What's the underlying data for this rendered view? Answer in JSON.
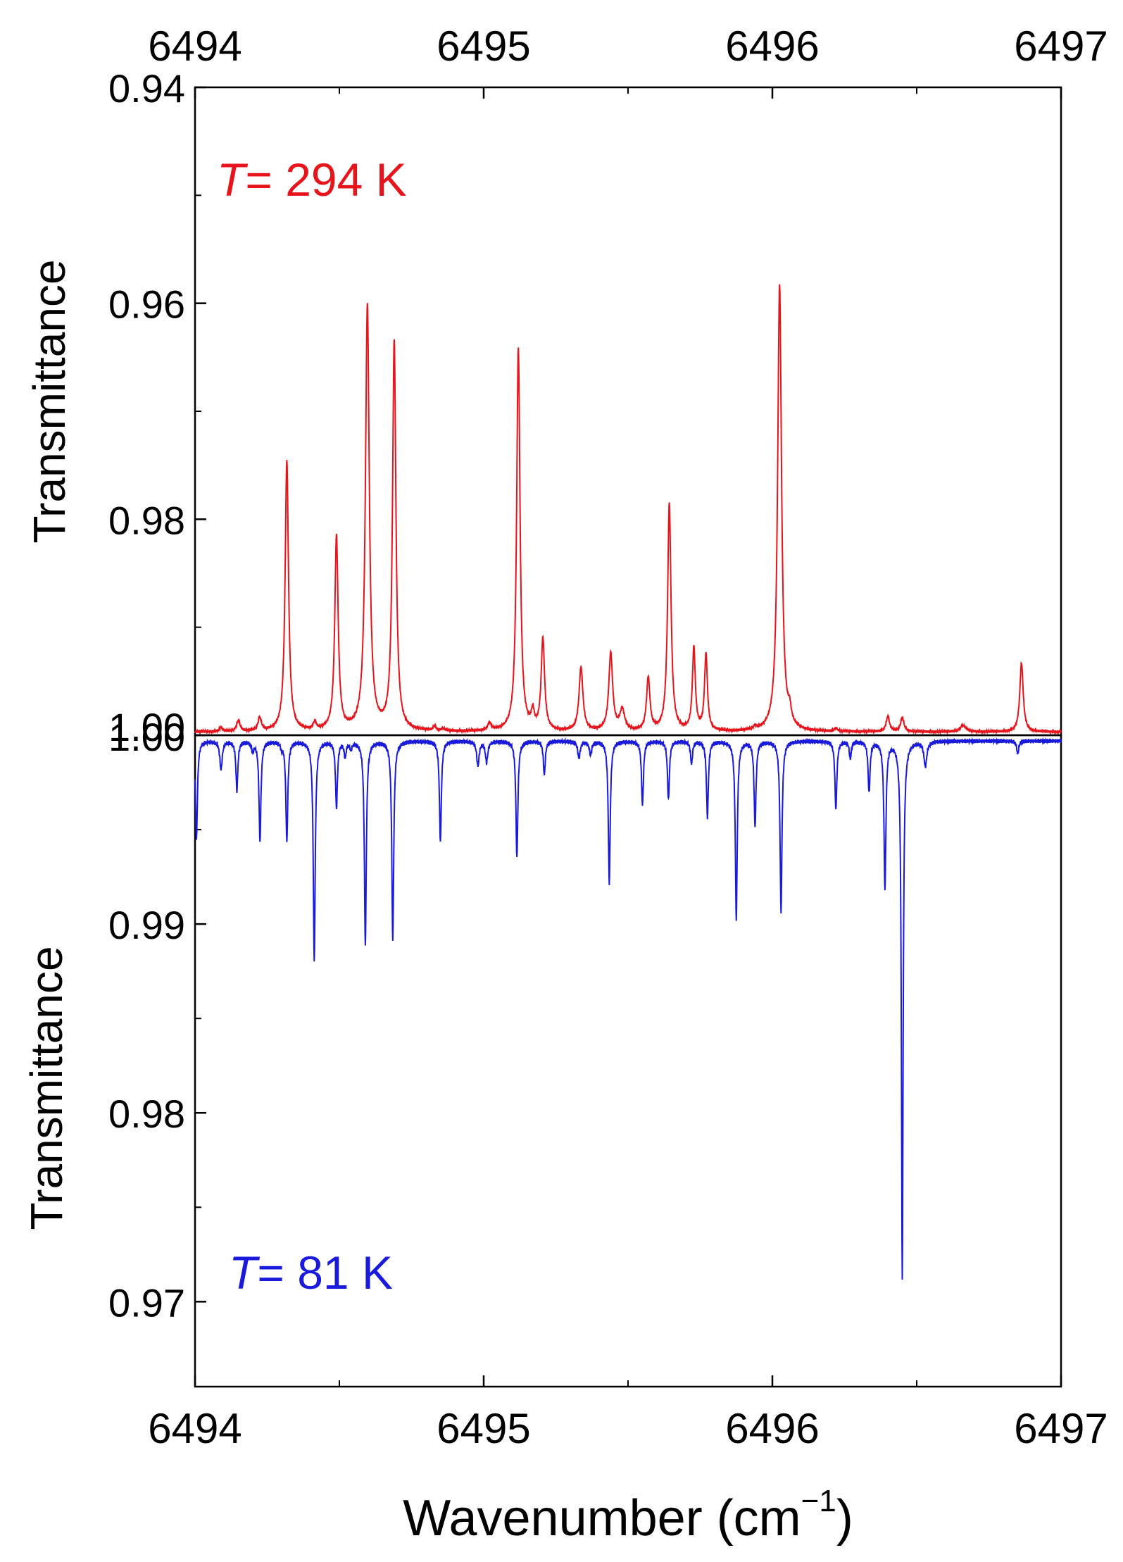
{
  "chart_data": [
    {
      "type": "line",
      "panel": "top",
      "annotation": {
        "italic": "T",
        "rest": "= 294 K"
      },
      "xlabel": "",
      "ylabel": "Transmittance",
      "xlim": [
        6494,
        6497
      ],
      "ylim": [
        1.0,
        0.94
      ],
      "y_inverted": true,
      "x_ticks": [
        6494,
        6495,
        6496,
        6497
      ],
      "x_tick_labels": [
        "6494",
        "6495",
        "6496",
        "6497"
      ],
      "y_ticks": [
        0.94,
        0.96,
        0.98,
        1.0
      ],
      "y_tick_labels": [
        "0.94",
        "0.96",
        "0.98",
        "1.00"
      ],
      "color": "#e8141c",
      "baseline": 0.9997,
      "peaks": [
        {
          "x": 6494.09,
          "y": 0.9993,
          "w": 0.006
        },
        {
          "x": 6494.15,
          "y": 0.9987,
          "w": 0.007
        },
        {
          "x": 6494.224,
          "y": 0.9985,
          "w": 0.007
        },
        {
          "x": 6494.318,
          "y": 0.9746,
          "w": 0.007
        },
        {
          "x": 6494.415,
          "y": 0.999,
          "w": 0.006
        },
        {
          "x": 6494.49,
          "y": 0.9817,
          "w": 0.007
        },
        {
          "x": 6494.597,
          "y": 0.9603,
          "w": 0.008
        },
        {
          "x": 6494.69,
          "y": 0.9636,
          "w": 0.007
        },
        {
          "x": 6494.83,
          "y": 0.9993,
          "w": 0.006
        },
        {
          "x": 6494.86,
          "y": 0.9995,
          "w": 0.006
        },
        {
          "x": 6495.02,
          "y": 0.999,
          "w": 0.007
        },
        {
          "x": 6495.12,
          "y": 0.9642,
          "w": 0.007
        },
        {
          "x": 6495.17,
          "y": 0.9982,
          "w": 0.006
        },
        {
          "x": 6495.205,
          "y": 0.9912,
          "w": 0.007
        },
        {
          "x": 6495.337,
          "y": 0.9938,
          "w": 0.008
        },
        {
          "x": 6495.44,
          "y": 0.9925,
          "w": 0.008
        },
        {
          "x": 6495.48,
          "y": 0.9978,
          "w": 0.01
        },
        {
          "x": 6495.57,
          "y": 0.9948,
          "w": 0.007
        },
        {
          "x": 6495.643,
          "y": 0.9786,
          "w": 0.007
        },
        {
          "x": 6495.728,
          "y": 0.992,
          "w": 0.006
        },
        {
          "x": 6495.77,
          "y": 0.9926,
          "w": 0.006
        },
        {
          "x": 6495.94,
          "y": 0.9994,
          "w": 0.006
        },
        {
          "x": 6496.025,
          "y": 0.9583,
          "w": 0.008
        },
        {
          "x": 6496.06,
          "y": 0.9985,
          "w": 0.006
        },
        {
          "x": 6496.22,
          "y": 0.9994,
          "w": 0.006
        },
        {
          "x": 6496.34,
          "y": 0.9997,
          "w": 0.006
        },
        {
          "x": 6496.4,
          "y": 0.9983,
          "w": 0.007
        },
        {
          "x": 6496.45,
          "y": 0.9984,
          "w": 0.007
        },
        {
          "x": 6496.66,
          "y": 0.9991,
          "w": 0.012
        },
        {
          "x": 6496.863,
          "y": 0.9933,
          "w": 0.007
        }
      ]
    },
    {
      "type": "line",
      "panel": "bottom",
      "annotation": {
        "italic": "T",
        "rest": "= 81 K"
      },
      "xlabel": "Wavenumber (cm⁻¹)",
      "xlabel_main": "Wavenumber (cm",
      "xlabel_sup": "−1",
      "xlabel_end": ")",
      "ylabel": "Transmittance",
      "xlim": [
        6494,
        6497
      ],
      "ylim": [
        0.9655,
        1.0
      ],
      "x_ticks": [
        6494,
        6495,
        6496,
        6497
      ],
      "x_tick_labels": [
        "6494",
        "6495",
        "6496",
        "6497"
      ],
      "y_ticks": [
        0.97,
        0.98,
        0.99,
        1.0
      ],
      "y_tick_labels": [
        "0.97",
        "0.98",
        "0.99",
        "1.00"
      ],
      "color": "#1a1adc",
      "baseline": 0.9997,
      "peaks": [
        {
          "x": 6494.005,
          "y": 0.9945,
          "w": 0.004
        },
        {
          "x": 6494.09,
          "y": 0.9982,
          "w": 0.005
        },
        {
          "x": 6494.145,
          "y": 0.9971,
          "w": 0.004
        },
        {
          "x": 6494.2,
          "y": 0.9992,
          "w": 0.004
        },
        {
          "x": 6494.225,
          "y": 0.9944,
          "w": 0.004
        },
        {
          "x": 6494.3,
          "y": 0.9994,
          "w": 0.004
        },
        {
          "x": 6494.318,
          "y": 0.9944,
          "w": 0.004
        },
        {
          "x": 6494.413,
          "y": 0.988,
          "w": 0.004
        },
        {
          "x": 6494.49,
          "y": 0.9962,
          "w": 0.004
        },
        {
          "x": 6494.52,
          "y": 0.9989,
          "w": 0.004
        },
        {
          "x": 6494.54,
          "y": 0.9993,
          "w": 0.004
        },
        {
          "x": 6494.59,
          "y": 0.9889,
          "w": 0.004
        },
        {
          "x": 6494.685,
          "y": 0.9892,
          "w": 0.004
        },
        {
          "x": 6494.85,
          "y": 0.9944,
          "w": 0.004
        },
        {
          "x": 6494.98,
          "y": 0.9984,
          "w": 0.005
        },
        {
          "x": 6495.01,
          "y": 0.9986,
          "w": 0.005
        },
        {
          "x": 6495.115,
          "y": 0.9935,
          "w": 0.004
        },
        {
          "x": 6495.21,
          "y": 0.9979,
          "w": 0.004
        },
        {
          "x": 6495.33,
          "y": 0.9988,
          "w": 0.005
        },
        {
          "x": 6495.37,
          "y": 0.999,
          "w": 0.005
        },
        {
          "x": 6495.435,
          "y": 0.9922,
          "w": 0.004
        },
        {
          "x": 6495.55,
          "y": 0.9963,
          "w": 0.004
        },
        {
          "x": 6495.64,
          "y": 0.9966,
          "w": 0.004
        },
        {
          "x": 6495.72,
          "y": 0.9985,
          "w": 0.004
        },
        {
          "x": 6495.775,
          "y": 0.9957,
          "w": 0.004
        },
        {
          "x": 6495.875,
          "y": 0.9903,
          "w": 0.004
        },
        {
          "x": 6495.94,
          "y": 0.9952,
          "w": 0.004
        },
        {
          "x": 6496.03,
          "y": 0.9907,
          "w": 0.004
        },
        {
          "x": 6496.22,
          "y": 0.9961,
          "w": 0.004
        },
        {
          "x": 6496.27,
          "y": 0.9988,
          "w": 0.004
        },
        {
          "x": 6496.335,
          "y": 0.997,
          "w": 0.004
        },
        {
          "x": 6496.39,
          "y": 0.9919,
          "w": 0.004
        },
        {
          "x": 6496.45,
          "y": 0.9712,
          "w": 0.0035
        },
        {
          "x": 6496.53,
          "y": 0.9984,
          "w": 0.006
        },
        {
          "x": 6496.85,
          "y": 0.999,
          "w": 0.004
        }
      ]
    }
  ]
}
